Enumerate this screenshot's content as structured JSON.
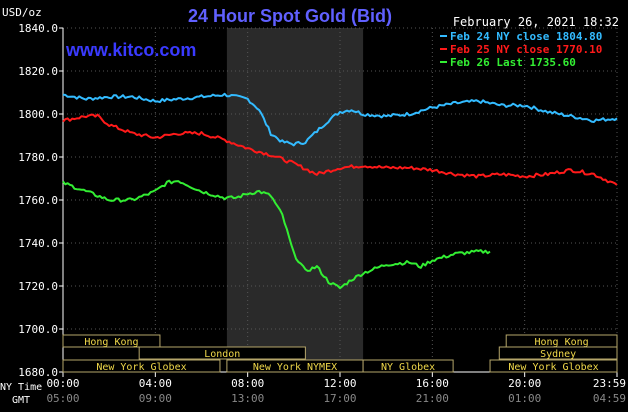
{
  "chart_data": {
    "type": "line",
    "title": "24 Hour Spot Gold (Bid)",
    "website": "www.kitco.com",
    "timestamp": "February 26, 2021 18:32",
    "y_unit_label": "USD/oz",
    "ylim": [
      1680,
      1840
    ],
    "y_ticks": [
      "1840.0",
      "1820.0",
      "1800.0",
      "1780.0",
      "1760.0",
      "1740.0",
      "1720.0",
      "1700.0",
      "1680.0"
    ],
    "x_row1_label": "NY Time",
    "x_row2_label": "GMT",
    "x_ticks_ny": [
      "00:00",
      "04:00",
      "08:00",
      "12:00",
      "16:00",
      "20:00",
      "23:59"
    ],
    "x_ticks_gmt": [
      "05:00",
      "09:00",
      "13:00",
      "17:00",
      "21:00",
      "01:00",
      "04:59"
    ],
    "xlim_hours": [
      0,
      24
    ],
    "shaded_region_hours": [
      7.1,
      13.0
    ],
    "grid": true,
    "legend_position": "top-right",
    "colors": {
      "feb24": "#33bbff",
      "feb25": "#ff1a1a",
      "feb26": "#33ee33",
      "axis": "#ffffff",
      "session": "#b5a66a",
      "site": "#3a3aff",
      "title": "#6060ff"
    },
    "legend": [
      {
        "key": "feb24",
        "label": "Feb 24 NY close 1804.80"
      },
      {
        "key": "feb25",
        "label": "Feb 25 NY close 1770.10"
      },
      {
        "key": "feb26",
        "label": "Feb 26 Last 1735.60"
      }
    ],
    "series": [
      {
        "key": "feb24",
        "name": "Feb 24 NY close 1804.80",
        "points": [
          [
            0,
            1809
          ],
          [
            1,
            1807
          ],
          [
            2,
            1808
          ],
          [
            3,
            1808
          ],
          [
            4,
            1806
          ],
          [
            5,
            1807
          ],
          [
            6,
            1808
          ],
          [
            7,
            1809
          ],
          [
            8,
            1807
          ],
          [
            8.5,
            1802
          ],
          [
            9,
            1791
          ],
          [
            9.5,
            1787
          ],
          [
            10,
            1786
          ],
          [
            10.5,
            1787
          ],
          [
            11,
            1792
          ],
          [
            11.5,
            1797
          ],
          [
            12,
            1801
          ],
          [
            12.5,
            1802
          ],
          [
            13,
            1800
          ],
          [
            14,
            1799
          ],
          [
            15,
            1800
          ],
          [
            16,
            1803
          ],
          [
            17,
            1805
          ],
          [
            18,
            1806
          ],
          [
            19,
            1804
          ],
          [
            20,
            1804
          ],
          [
            21,
            1801
          ],
          [
            22,
            1799
          ],
          [
            23,
            1797
          ],
          [
            24,
            1798
          ]
        ]
      },
      {
        "key": "feb25",
        "name": "Feb 25 NY close 1770.10",
        "points": [
          [
            0,
            1797
          ],
          [
            1,
            1799
          ],
          [
            1.5,
            1799
          ],
          [
            2,
            1795
          ],
          [
            3,
            1791
          ],
          [
            4,
            1789
          ],
          [
            5,
            1791
          ],
          [
            6,
            1791
          ],
          [
            7,
            1788
          ],
          [
            8,
            1784
          ],
          [
            9,
            1781
          ],
          [
            10,
            1777
          ],
          [
            11,
            1772
          ],
          [
            12,
            1775
          ],
          [
            13,
            1776
          ],
          [
            14,
            1775
          ],
          [
            15,
            1775
          ],
          [
            16,
            1774
          ],
          [
            17,
            1772
          ],
          [
            18,
            1771
          ],
          [
            19,
            1772
          ],
          [
            20,
            1771
          ],
          [
            21,
            1772
          ],
          [
            22,
            1774
          ],
          [
            23,
            1772
          ],
          [
            24,
            1767
          ]
        ]
      },
      {
        "key": "feb26",
        "name": "Feb 26 Last 1735.60",
        "points": [
          [
            0,
            1768
          ],
          [
            1,
            1764
          ],
          [
            2,
            1760
          ],
          [
            3,
            1760
          ],
          [
            4,
            1764
          ],
          [
            4.5,
            1768
          ],
          [
            5,
            1769
          ],
          [
            6,
            1764
          ],
          [
            7,
            1761
          ],
          [
            7.5,
            1761
          ],
          [
            8,
            1763
          ],
          [
            8.5,
            1764
          ],
          [
            9,
            1762
          ],
          [
            9.5,
            1753
          ],
          [
            10,
            1735
          ],
          [
            10.5,
            1727
          ],
          [
            11,
            1729
          ],
          [
            11.5,
            1722
          ],
          [
            12,
            1719
          ],
          [
            12.5,
            1723
          ],
          [
            13,
            1726
          ],
          [
            13.5,
            1728
          ],
          [
            14,
            1730
          ],
          [
            15,
            1731
          ],
          [
            15.5,
            1729
          ],
          [
            16,
            1732
          ],
          [
            17,
            1735
          ],
          [
            18,
            1736
          ],
          [
            18.5,
            1736
          ]
        ]
      }
    ],
    "sessions": [
      {
        "label": "Hong Kong",
        "row": 0,
        "start": 0,
        "end": 4.2
      },
      {
        "label": "Hong Kong",
        "row": 0,
        "start": 19.2,
        "end": 24
      },
      {
        "label": "London",
        "row": 1,
        "start": 3.3,
        "end": 10.5
      },
      {
        "label": "Sydney",
        "row": 1,
        "start": 18.9,
        "end": 24
      },
      {
        "label": "New York Globex",
        "row": 2,
        "start": 0,
        "end": 6.8
      },
      {
        "label": "New York NYMEX",
        "row": 2,
        "start": 7.1,
        "end": 13.0
      },
      {
        "label": "NY Globex",
        "row": 2,
        "start": 13.0,
        "end": 16.9
      },
      {
        "label": "New York Globex",
        "row": 2,
        "start": 18.5,
        "end": 24
      }
    ]
  }
}
